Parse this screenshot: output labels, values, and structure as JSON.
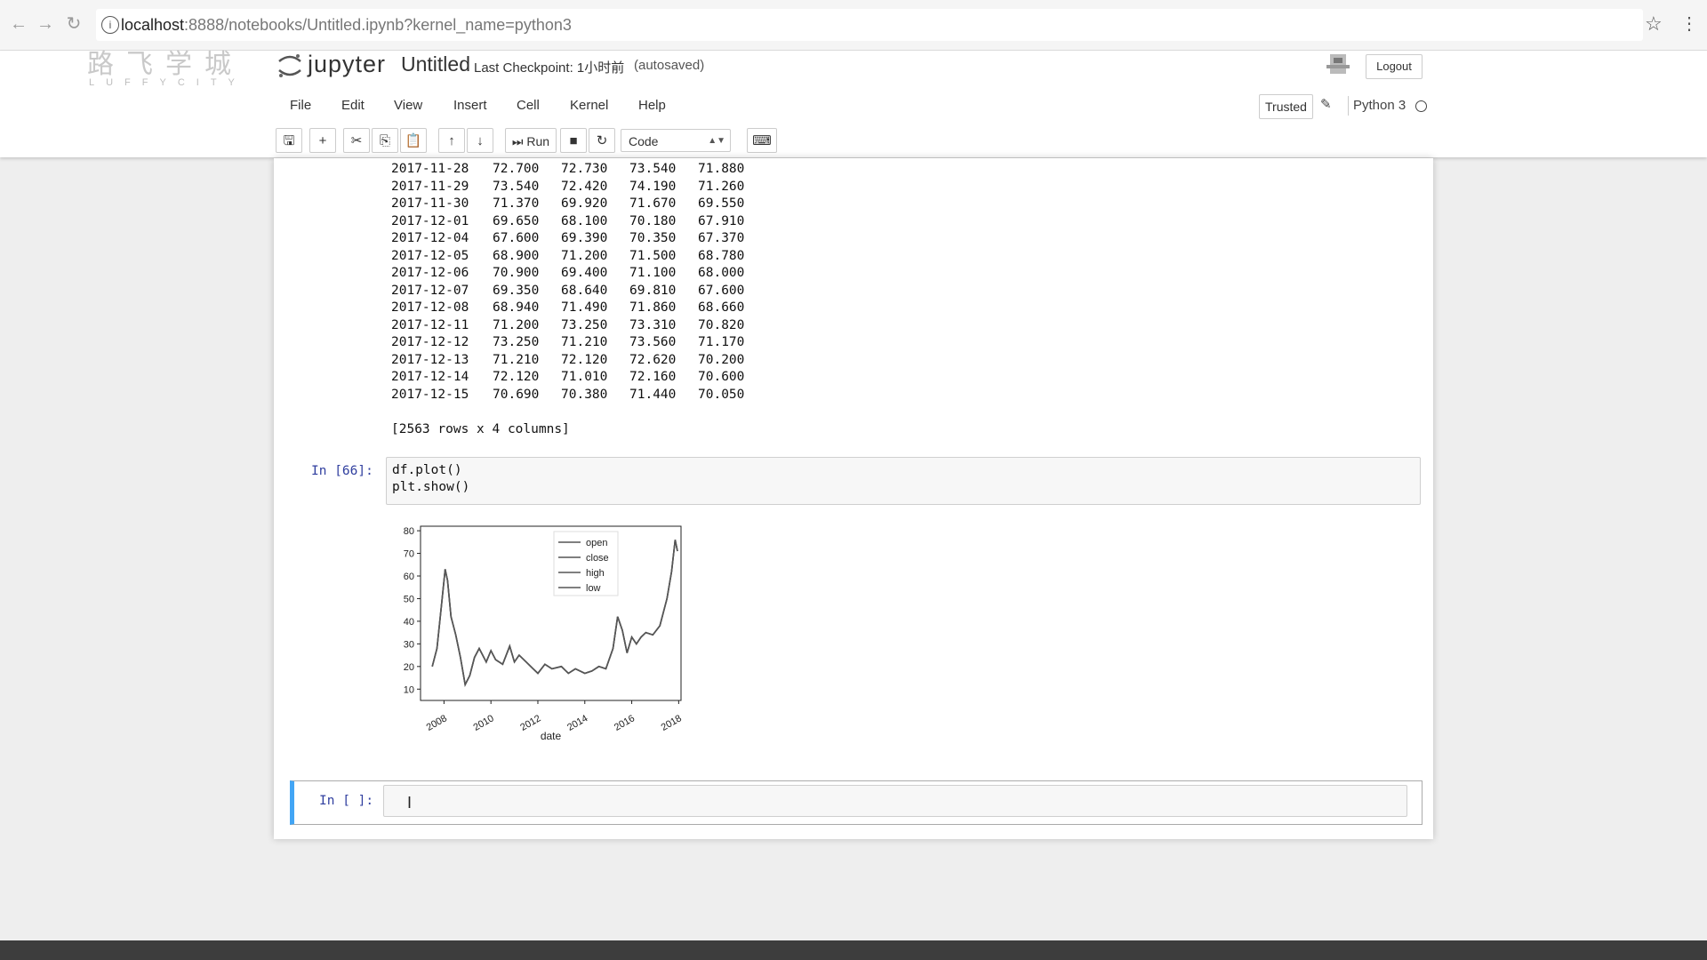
{
  "browser": {
    "url_host": "localhost",
    "url_rest": ":8888/notebooks/Untitled.ipynb?kernel_name=python3",
    "back_icon": "arrow-left-icon",
    "forward_icon": "arrow-right-icon",
    "reload_icon": "reload-icon",
    "star_icon": "star-icon",
    "menu_icon": "kebab-icon"
  },
  "header": {
    "logo_cn": "路飞学城",
    "logo_en": "LUFFYCITY",
    "jupyter_text": "jupyter",
    "notebook_name": "Untitled",
    "checkpoint": "Last Checkpoint: 1小时前",
    "autosaved": "(autosaved)",
    "logout": "Logout"
  },
  "menu": [
    "File",
    "Edit",
    "View",
    "Insert",
    "Cell",
    "Kernel",
    "Help"
  ],
  "status": {
    "trusted": "Trusted",
    "kernel": "Python 3"
  },
  "toolbar": {
    "run_label": "Run",
    "cell_type": "Code"
  },
  "output_table": {
    "rows": [
      [
        "2017-11-28",
        "72.700",
        "72.730",
        "73.540",
        "71.880"
      ],
      [
        "2017-11-29",
        "73.540",
        "72.420",
        "74.190",
        "71.260"
      ],
      [
        "2017-11-30",
        "71.370",
        "69.920",
        "71.670",
        "69.550"
      ],
      [
        "2017-12-01",
        "69.650",
        "68.100",
        "70.180",
        "67.910"
      ],
      [
        "2017-12-04",
        "67.600",
        "69.390",
        "70.350",
        "67.370"
      ],
      [
        "2017-12-05",
        "68.900",
        "71.200",
        "71.500",
        "68.780"
      ],
      [
        "2017-12-06",
        "70.900",
        "69.400",
        "71.100",
        "68.000"
      ],
      [
        "2017-12-07",
        "69.350",
        "68.640",
        "69.810",
        "67.600"
      ],
      [
        "2017-12-08",
        "68.940",
        "71.490",
        "71.860",
        "68.660"
      ],
      [
        "2017-12-11",
        "71.200",
        "73.250",
        "73.310",
        "70.820"
      ],
      [
        "2017-12-12",
        "73.250",
        "71.210",
        "73.560",
        "71.170"
      ],
      [
        "2017-12-13",
        "71.210",
        "72.120",
        "72.620",
        "70.200"
      ],
      [
        "2017-12-14",
        "72.120",
        "71.010",
        "72.160",
        "70.600"
      ],
      [
        "2017-12-15",
        "70.690",
        "70.380",
        "71.440",
        "70.050"
      ]
    ],
    "summary": "[2563 rows x 4 columns]"
  },
  "cell_66": {
    "prompt": "In [66]:",
    "code": [
      "df.plot()",
      "plt.show()"
    ]
  },
  "next_cell": {
    "prompt": "In [ ]:"
  },
  "chart_data": {
    "type": "line",
    "xlabel": "date",
    "x_ticks": [
      "2008",
      "2010",
      "2012",
      "2014",
      "2016",
      "2018"
    ],
    "y_ticks": [
      10,
      20,
      30,
      40,
      50,
      60,
      70,
      80
    ],
    "ylim": [
      5,
      82
    ],
    "xlim": [
      2007.0,
      2018.1
    ],
    "legend_position": "top-center",
    "series_color": "#555555",
    "series": [
      {
        "name": "open"
      },
      {
        "name": "close"
      },
      {
        "name": "high"
      },
      {
        "name": "low"
      }
    ],
    "x": [
      2007.5,
      2007.7,
      2007.9,
      2008.05,
      2008.15,
      2008.3,
      2008.5,
      2008.7,
      2008.9,
      2009.1,
      2009.3,
      2009.5,
      2009.8,
      2010.0,
      2010.2,
      2010.5,
      2010.8,
      2011.0,
      2011.2,
      2011.5,
      2011.8,
      2012.0,
      2012.3,
      2012.6,
      2013.0,
      2013.3,
      2013.6,
      2014.0,
      2014.3,
      2014.6,
      2014.9,
      2015.2,
      2015.4,
      2015.6,
      2015.8,
      2016.0,
      2016.2,
      2016.4,
      2016.6,
      2016.9,
      2017.2,
      2017.5,
      2017.7,
      2017.85,
      2017.95
    ],
    "values": [
      20,
      28,
      48,
      63,
      58,
      42,
      34,
      24,
      12,
      16,
      24,
      28,
      22,
      27,
      23,
      21,
      29,
      22,
      25,
      22,
      19,
      17,
      21,
      19,
      20,
      17,
      19,
      17,
      18,
      20,
      19,
      28,
      42,
      36,
      26,
      33,
      30,
      33,
      35,
      34,
      38,
      50,
      62,
      76,
      71
    ]
  }
}
